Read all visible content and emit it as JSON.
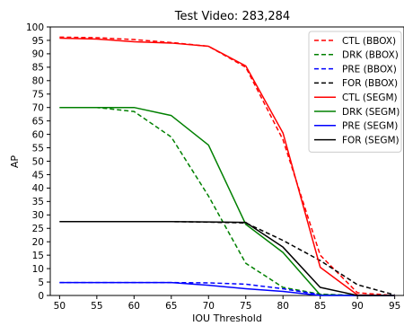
{
  "chart_data": {
    "type": "line",
    "title": "Test Video: 283,284",
    "xlabel": "IOU Threshold",
    "ylabel": "AP",
    "xlim": [
      48.75,
      96.25
    ],
    "ylim": [
      0,
      100
    ],
    "xticks": [
      50,
      55,
      60,
      65,
      70,
      75,
      80,
      85,
      90,
      95
    ],
    "yticks": [
      0,
      5,
      10,
      15,
      20,
      25,
      30,
      35,
      40,
      45,
      50,
      55,
      60,
      65,
      70,
      75,
      80,
      85,
      90,
      95,
      100
    ],
    "grid": false,
    "legend_position": "top-right",
    "x": [
      50,
      55,
      60,
      65,
      70,
      75,
      80,
      85,
      90,
      95
    ],
    "series": [
      {
        "name": "CTL (BBOX)",
        "color": "#ff0000",
        "style": "dashed",
        "values": [
          96.2,
          96.0,
          95.3,
          94.2,
          92.8,
          85.0,
          58.0,
          15.0,
          1.0,
          0.0
        ]
      },
      {
        "name": "DRK (BBOX)",
        "color": "#008000",
        "style": "dashed",
        "values": [
          70.0,
          70.0,
          68.5,
          59.0,
          37.0,
          12.0,
          3.0,
          0.5,
          0.0,
          0.0
        ]
      },
      {
        "name": "PRE (BBOX)",
        "color": "#0000ff",
        "style": "dashed",
        "values": [
          4.8,
          4.8,
          4.8,
          4.8,
          4.7,
          4.2,
          2.5,
          0.3,
          0.0,
          0.0
        ]
      },
      {
        "name": "FOR (BBOX)",
        "color": "#000000",
        "style": "dashed",
        "values": [
          27.5,
          27.5,
          27.5,
          27.5,
          27.3,
          27.0,
          20.5,
          13.0,
          4.0,
          0.2
        ]
      },
      {
        "name": "CTL (SEGM)",
        "color": "#ff0000",
        "style": "solid",
        "values": [
          95.8,
          95.5,
          94.5,
          94.0,
          92.8,
          85.5,
          60.5,
          10.5,
          0.2,
          0.0
        ]
      },
      {
        "name": "DRK (SEGM)",
        "color": "#008000",
        "style": "solid",
        "values": [
          70.0,
          70.0,
          70.0,
          67.0,
          56.0,
          26.5,
          16.0,
          0.2,
          0.0,
          0.0
        ]
      },
      {
        "name": "PRE (SEGM)",
        "color": "#0000ff",
        "style": "solid",
        "values": [
          4.8,
          4.8,
          4.8,
          4.8,
          3.8,
          2.5,
          1.5,
          0.0,
          0.0,
          0.0
        ]
      },
      {
        "name": "FOR (SEGM)",
        "color": "#000000",
        "style": "solid",
        "values": [
          27.5,
          27.5,
          27.5,
          27.5,
          27.4,
          27.2,
          18.0,
          3.0,
          0.0,
          0.0
        ]
      }
    ]
  }
}
